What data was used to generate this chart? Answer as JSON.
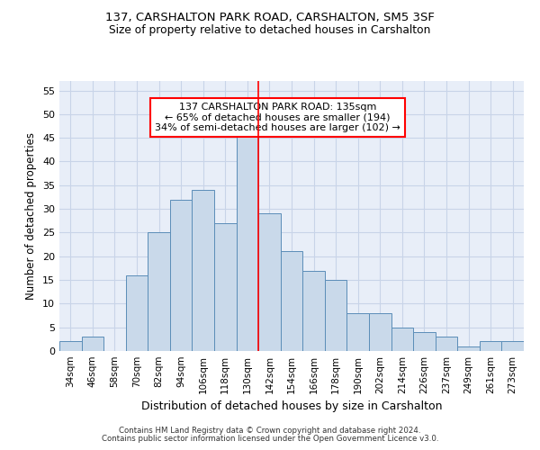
{
  "title1": "137, CARSHALTON PARK ROAD, CARSHALTON, SM5 3SF",
  "title2": "Size of property relative to detached houses in Carshalton",
  "xlabel": "Distribution of detached houses by size in Carshalton",
  "ylabel": "Number of detached properties",
  "categories": [
    "34sqm",
    "46sqm",
    "58sqm",
    "70sqm",
    "82sqm",
    "94sqm",
    "106sqm",
    "118sqm",
    "130sqm",
    "142sqm",
    "154sqm",
    "166sqm",
    "178sqm",
    "190sqm",
    "202sqm",
    "214sqm",
    "226sqm",
    "237sqm",
    "249sqm",
    "261sqm",
    "273sqm"
  ],
  "bar_heights": [
    2,
    3,
    0,
    16,
    25,
    32,
    34,
    27,
    46,
    29,
    21,
    17,
    15,
    8,
    8,
    5,
    4,
    3,
    1,
    2,
    2
  ],
  "bar_color": "#c9d9ea",
  "bar_edge_color": "#5b8db8",
  "bar_width": 1.0,
  "vline_x": 8.5,
  "vline_color": "red",
  "annotation_title": "137 CARSHALTON PARK ROAD: 135sqm",
  "annotation_line1": "← 65% of detached houses are smaller (194)",
  "annotation_line2": "34% of semi-detached houses are larger (102) →",
  "annotation_box_color": "white",
  "annotation_box_edge": "red",
  "ylim": [
    0,
    57
  ],
  "yticks": [
    0,
    5,
    10,
    15,
    20,
    25,
    30,
    35,
    40,
    45,
    50,
    55
  ],
  "grid_color": "#c8d4e8",
  "bg_color": "#e8eef8",
  "footer1": "Contains HM Land Registry data © Crown copyright and database right 2024.",
  "footer2": "Contains public sector information licensed under the Open Government Licence v3.0."
}
